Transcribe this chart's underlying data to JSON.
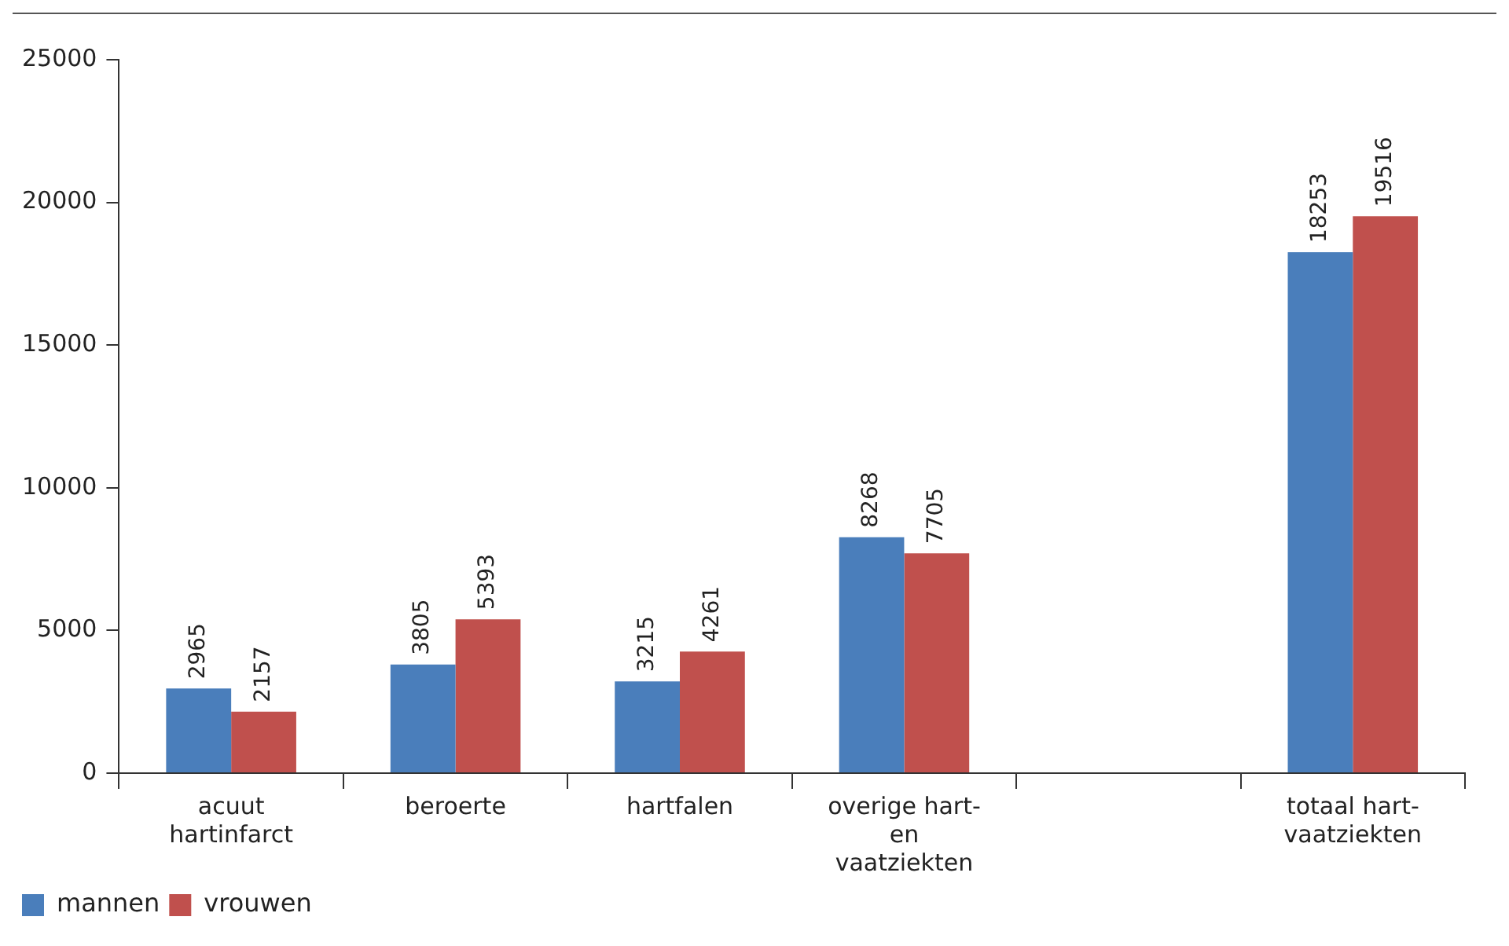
{
  "chart_data": {
    "type": "bar",
    "categories": [
      "acuut\nhartinfarct",
      "beroerte",
      "hartfalen",
      "overige hart-\nen\nvaatziekten",
      null,
      "totaal hart-\nvaatziekten"
    ],
    "series": [
      {
        "name": "mannen",
        "color": "#4a7ebb",
        "values": [
          2965,
          3805,
          3215,
          8268,
          null,
          18253
        ]
      },
      {
        "name": "vrouwen",
        "color": "#c0504d",
        "values": [
          2157,
          5393,
          4261,
          7705,
          null,
          19516
        ]
      }
    ],
    "ylim": [
      0,
      25000
    ],
    "yticks": [
      0,
      5000,
      10000,
      15000,
      20000,
      25000
    ],
    "grid": false,
    "legend": "bottom left",
    "data_labels": true
  }
}
